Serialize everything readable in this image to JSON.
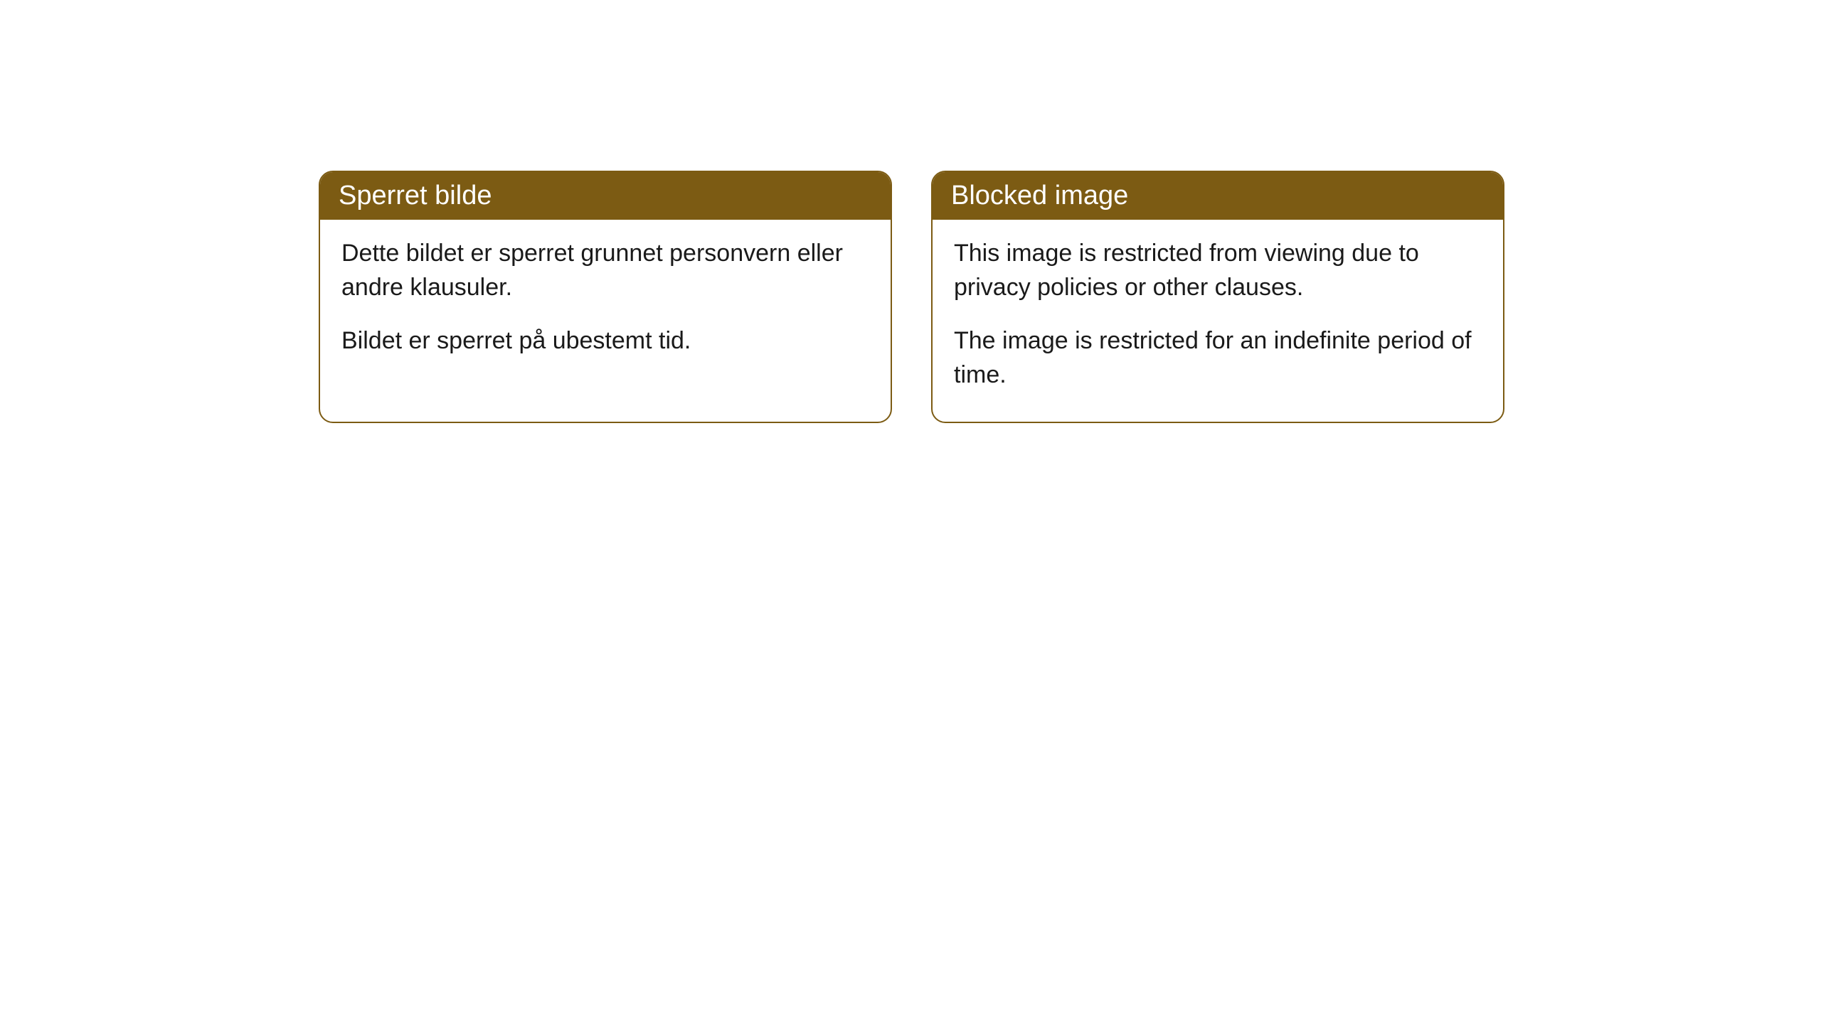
{
  "cards": [
    {
      "title": "Sperret bilde",
      "paragraph1": "Dette bildet er sperret grunnet personvern eller andre klausuler.",
      "paragraph2": "Bildet er sperret på ubestemt tid."
    },
    {
      "title": "Blocked image",
      "paragraph1": "This image is restricted from viewing due to privacy policies or other clauses.",
      "paragraph2": "The image is restricted for an indefinite period of time."
    }
  ],
  "styling": {
    "header_background": "#7c5b13",
    "header_text_color": "#ffffff",
    "border_color": "#7c5b13",
    "body_text_color": "#1a1a1a",
    "card_background": "#ffffff",
    "border_radius": 20,
    "title_fontsize": 38,
    "body_fontsize": 34
  }
}
